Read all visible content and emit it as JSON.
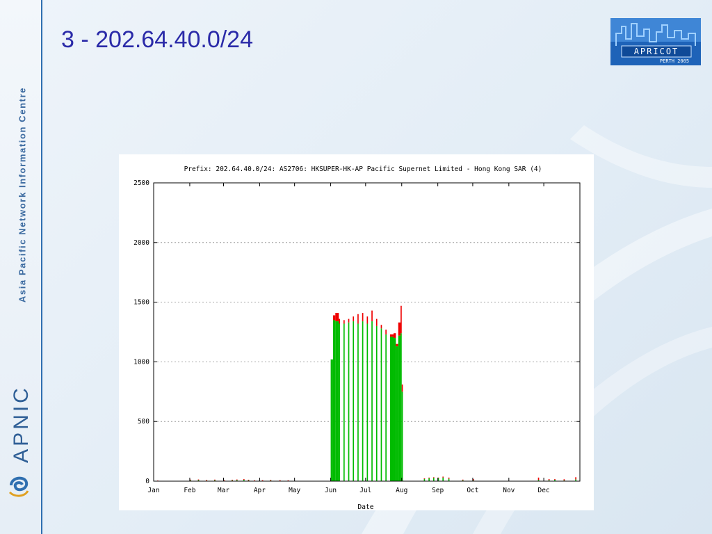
{
  "slide": {
    "title": "3 - 202.64.40.0/24"
  },
  "sidebar": {
    "org_name": "Asia Pacific Network Information Centre",
    "brand": "APNIC"
  },
  "logo": {
    "name": "APRICOT",
    "subtitle": "PERTH 2005"
  },
  "colors": {
    "title": "#2a2aa8",
    "accent_blue": "#2f6fb0",
    "series_green": "#00bb00",
    "series_red": "#ee0000"
  },
  "chart_data": {
    "type": "bar",
    "title": "Prefix: 202.64.40.0/24: AS2706: HKSUPER-HK-AP Pacific Supernet Limited - Hong Kong SAR (4)",
    "xlabel": "Date",
    "ylabel": "",
    "ylim": [
      0,
      2500
    ],
    "yticks": [
      0,
      500,
      1000,
      1500,
      2000,
      2500
    ],
    "xticks": [
      "Jan",
      "Feb",
      "Mar",
      "Apr",
      "May",
      "Jun",
      "Jul",
      "Aug",
      "Sep",
      "Oct",
      "Nov",
      "Dec"
    ],
    "grid": true,
    "stacked": true,
    "series": [
      {
        "color": "#00bb00",
        "x": [
          "Jan-04",
          "Feb-01",
          "Feb-08",
          "Feb-15",
          "Feb-22",
          "Mar-01",
          "Mar-08",
          "Mar-12",
          "Mar-18",
          "Mar-22",
          "Mar-27",
          "Apr-03",
          "Apr-10",
          "Apr-18",
          "Apr-25",
          "Jun-01",
          "Jun-03",
          "Jun-05",
          "Jun-08",
          "Jun-12",
          "Jun-16",
          "Jun-20",
          "Jun-24",
          "Jun-28",
          "Jul-02",
          "Jul-06",
          "Jul-10",
          "Jul-14",
          "Jul-18",
          "Jul-22",
          "Jul-25",
          "Jul-27",
          "Jul-29",
          "Jul-31",
          "Aug-01",
          "Aug-20",
          "Aug-24",
          "Aug-28",
          "Sep-01",
          "Sep-05",
          "Sep-10",
          "Sep-22",
          "Oct-01",
          "Nov-26",
          "Dec-05",
          "Dec-10",
          "Dec-18",
          "Dec-28"
        ],
        "values": [
          3,
          10,
          12,
          8,
          10,
          6,
          10,
          12,
          14,
          10,
          5,
          6,
          8,
          6,
          4,
          1020,
          1350,
          1340,
          1320,
          1320,
          1330,
          1340,
          1320,
          1340,
          1320,
          1340,
          1300,
          1280,
          1230,
          1210,
          1200,
          1130,
          1220,
          1240,
          750,
          20,
          24,
          28,
          26,
          30,
          20,
          8,
          6,
          10,
          8,
          12,
          6,
          15
        ]
      },
      {
        "color": "#ee0000",
        "x": [
          "Jan-04",
          "Feb-01",
          "Feb-08",
          "Feb-15",
          "Feb-22",
          "Mar-01",
          "Mar-08",
          "Mar-12",
          "Mar-18",
          "Mar-22",
          "Mar-27",
          "Apr-03",
          "Apr-10",
          "Apr-18",
          "Apr-25",
          "Jun-01",
          "Jun-03",
          "Jun-05",
          "Jun-08",
          "Jun-12",
          "Jun-16",
          "Jun-20",
          "Jun-24",
          "Jun-28",
          "Jul-02",
          "Jul-06",
          "Jul-10",
          "Jul-14",
          "Jul-18",
          "Jul-22",
          "Jul-25",
          "Jul-27",
          "Jul-29",
          "Jul-31",
          "Aug-01",
          "Aug-20",
          "Aug-24",
          "Aug-28",
          "Sep-01",
          "Sep-05",
          "Sep-10",
          "Sep-22",
          "Oct-01",
          "Nov-26",
          "Dec-05",
          "Dec-10",
          "Dec-18",
          "Dec-28"
        ],
        "values": [
          2,
          3,
          2,
          2,
          3,
          2,
          2,
          2,
          3,
          2,
          2,
          2,
          3,
          2,
          3,
          0,
          40,
          70,
          40,
          30,
          30,
          40,
          80,
          70,
          60,
          90,
          60,
          30,
          40,
          20,
          40,
          20,
          110,
          230,
          60,
          4,
          6,
          5,
          4,
          8,
          10,
          5,
          12,
          20,
          10,
          6,
          10,
          18
        ]
      }
    ]
  }
}
